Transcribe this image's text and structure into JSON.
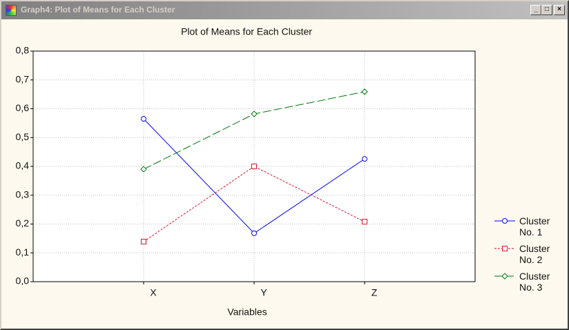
{
  "window": {
    "title": "Graph4: Plot of Means for Each Cluster"
  },
  "chart_data": {
    "type": "line",
    "title": "Plot of Means for Each Cluster",
    "x_label": "Variables",
    "categories": [
      "X",
      "Y",
      "Z"
    ],
    "series": [
      {
        "name": "Cluster No. 1",
        "color": "#0000ff",
        "marker": "circle",
        "dash": "solid",
        "values": [
          0.565,
          0.168,
          0.426
        ]
      },
      {
        "name": "Cluster No. 2",
        "color": "#e0102a",
        "marker": "square",
        "dash": "dotted",
        "values": [
          0.139,
          0.4,
          0.208
        ]
      },
      {
        "name": "Cluster No. 3",
        "color": "#00780a",
        "marker": "diamond",
        "dash": "dashed",
        "values": [
          0.39,
          0.582,
          0.659
        ]
      }
    ],
    "ylim": [
      0,
      0.8
    ],
    "yticks": [
      {
        "value": 0,
        "label": "0,0"
      },
      {
        "value": 0.1,
        "label": "0,1"
      },
      {
        "value": 0.2,
        "label": "0,2"
      },
      {
        "value": 0.3,
        "label": "0,3"
      },
      {
        "value": 0.4,
        "label": "0,4"
      },
      {
        "value": 0.5,
        "label": "0,5"
      },
      {
        "value": 0.6,
        "label": "0,6"
      },
      {
        "value": 0.7,
        "label": "0,7"
      },
      {
        "value": 0.8,
        "label": "0,8"
      }
    ],
    "grid": true,
    "legend": "right"
  }
}
